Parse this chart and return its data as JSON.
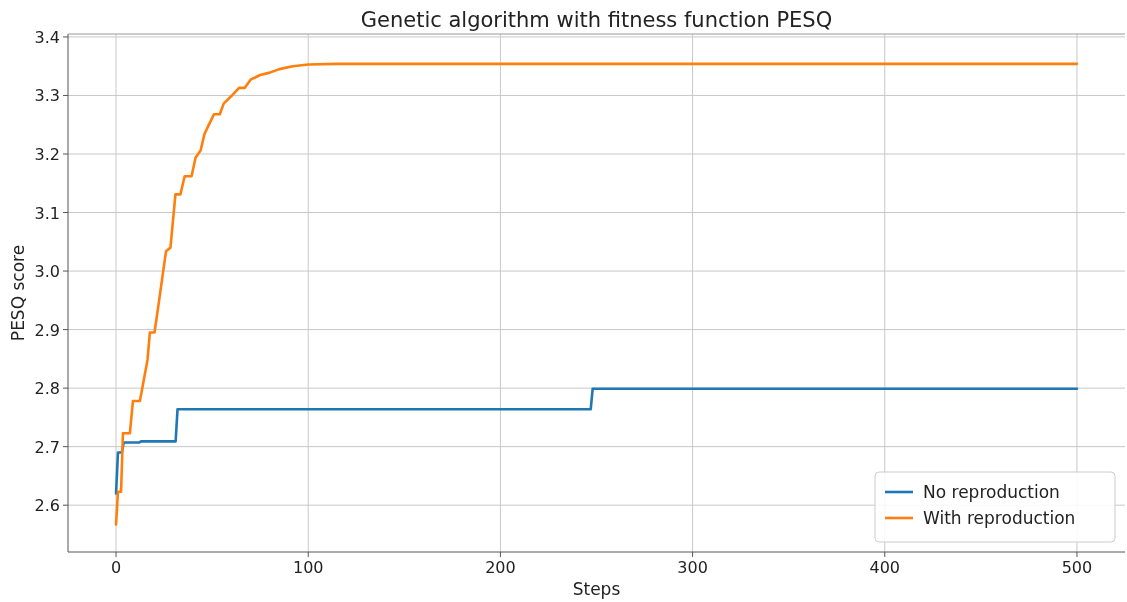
{
  "chart_data": {
    "type": "line",
    "title": "Genetic algorithm with fitness function PESQ",
    "xlabel": "Steps",
    "ylabel": "PESQ score",
    "xlim": [
      -25,
      525
    ],
    "ylim": [
      2.52,
      3.405
    ],
    "xticks": [
      0,
      100,
      200,
      300,
      400,
      500
    ],
    "yticks": [
      {
        "value": 2.6,
        "label": "2.6"
      },
      {
        "value": 2.7,
        "label": "2.7"
      },
      {
        "value": 2.8,
        "label": "2.8"
      },
      {
        "value": 2.9,
        "label": "2.9"
      },
      {
        "value": 3.0,
        "label": "3.0"
      },
      {
        "value": 3.1,
        "label": "3.1"
      },
      {
        "value": 3.2,
        "label": "3.2"
      },
      {
        "value": 3.3,
        "label": "3.3"
      },
      {
        "value": 3.4,
        "label": "3.4"
      }
    ],
    "grid": true,
    "legend": "bottom right",
    "line_style": "solid",
    "marker": "none",
    "series": [
      {
        "name": "No reproduction",
        "color": "#1f77b4",
        "x": [
          0,
          1,
          3,
          4,
          12,
          13,
          31,
          32,
          247,
          248,
          500
        ],
        "values": [
          2.62,
          2.69,
          2.69,
          2.707,
          2.707,
          2.709,
          2.709,
          2.764,
          2.764,
          2.799,
          2.799
        ]
      },
      {
        "name": "With reproduction",
        "color": "#ff7f0e",
        "x": [
          0,
          1,
          2.6,
          3.6,
          7.2,
          8.8,
          12.4,
          14,
          16.4,
          17.6,
          20,
          22,
          26,
          28.3,
          30.9,
          33.5,
          35.7,
          39.3,
          41.4,
          44,
          46,
          48,
          51,
          54,
          56,
          60,
          64,
          67,
          70,
          75,
          80,
          85,
          92,
          100,
          115,
          500
        ],
        "values": [
          2.567,
          2.623,
          2.623,
          2.723,
          2.723,
          2.778,
          2.778,
          2.806,
          2.849,
          2.895,
          2.895,
          2.94,
          3.034,
          3.04,
          3.131,
          3.131,
          3.162,
          3.162,
          3.194,
          3.206,
          3.234,
          3.248,
          3.268,
          3.268,
          3.286,
          3.299,
          3.313,
          3.313,
          3.327,
          3.335,
          3.339,
          3.345,
          3.35,
          3.353,
          3.354,
          3.354
        ]
      }
    ]
  }
}
